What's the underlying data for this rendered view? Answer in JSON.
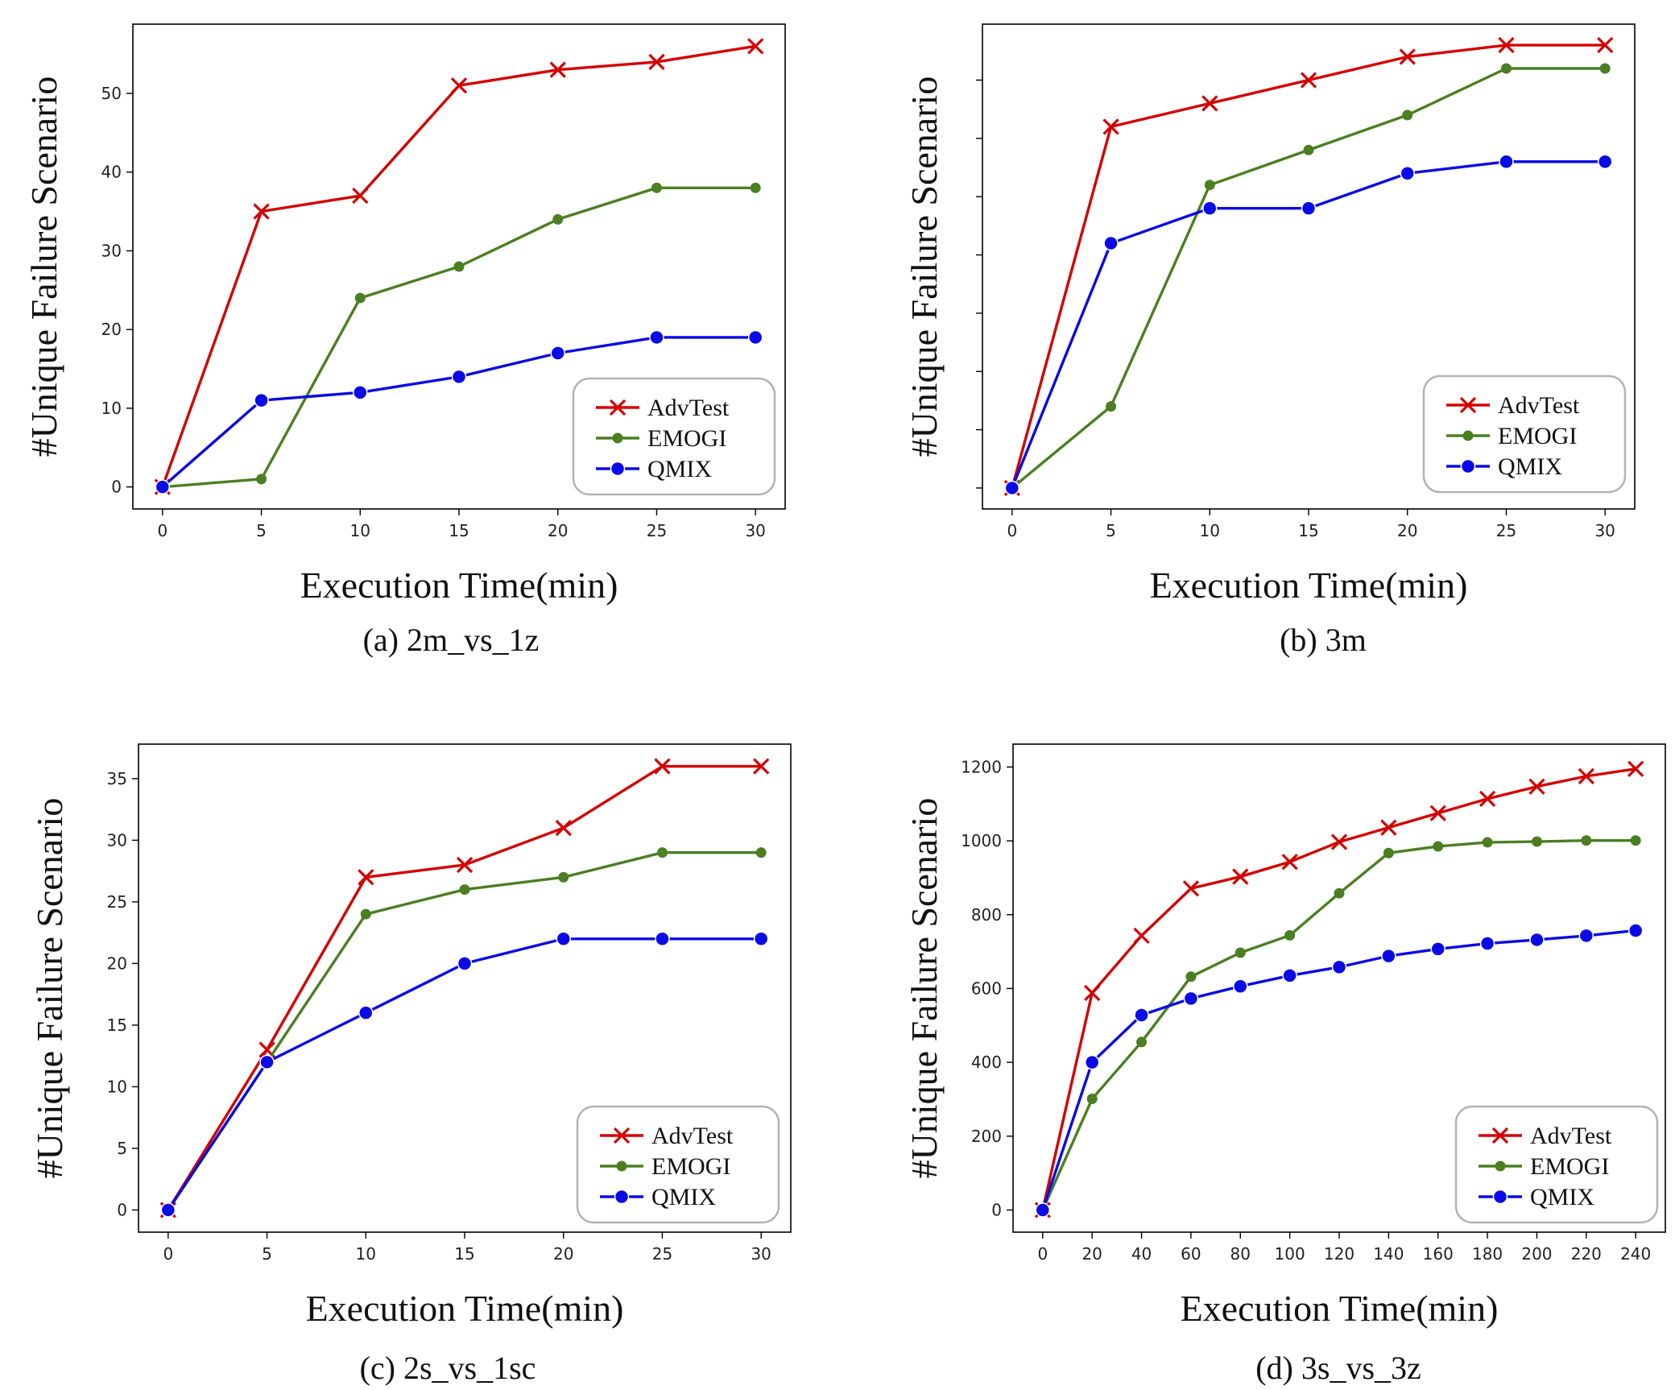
{
  "chart_data": [
    {
      "type": "line",
      "caption": "(a) 2m_vs_1z",
      "xlabel": "Execution Time(min)",
      "ylabel": "#Unique Failure Scenario",
      "x": [
        0,
        5,
        10,
        15,
        20,
        25,
        30
      ],
      "xticks": [
        0,
        5,
        10,
        15,
        20,
        25,
        30
      ],
      "yticks": [
        0,
        10,
        20,
        30,
        40,
        50
      ],
      "xlim": [
        -1.5,
        31.5
      ],
      "ylim": [
        -2.8,
        58.8
      ],
      "show_ytick_labels": true,
      "grid": false,
      "legend_position": "lower-right",
      "series": [
        {
          "name": "AdvTest",
          "color": "#d40000",
          "marker": "x",
          "values": [
            0,
            35,
            37,
            51,
            53,
            54,
            56
          ]
        },
        {
          "name": "EMOGI",
          "color": "#4b7f22",
          "marker": "dot",
          "values": [
            0,
            1,
            24,
            28,
            34,
            38,
            38
          ]
        },
        {
          "name": "QMIX",
          "color": "#0a0ae6",
          "marker": "circle",
          "values": [
            0,
            11,
            12,
            14,
            17,
            19,
            19
          ]
        }
      ]
    },
    {
      "type": "line",
      "caption": "(b) 3m",
      "xlabel": "Execution Time(min)",
      "ylabel": "#Unique Failure Scenario",
      "x": [
        0,
        5,
        10,
        15,
        20,
        25,
        30
      ],
      "xticks": [
        0,
        5,
        10,
        15,
        20,
        25,
        30
      ],
      "yticks": [
        0,
        5,
        10,
        15,
        20,
        25,
        30,
        35
      ],
      "xlim": [
        -1.5,
        31.5
      ],
      "ylim": [
        -1.8,
        39.8
      ],
      "show_ytick_labels": false,
      "grid": false,
      "legend_position": "lower-right",
      "series": [
        {
          "name": "AdvTest",
          "color": "#d40000",
          "marker": "x",
          "values": [
            0,
            31,
            33,
            35,
            37,
            38,
            38
          ]
        },
        {
          "name": "EMOGI",
          "color": "#4b7f22",
          "marker": "dot",
          "values": [
            0,
            7,
            26,
            29,
            32,
            36,
            36
          ]
        },
        {
          "name": "QMIX",
          "color": "#0a0ae6",
          "marker": "circle",
          "values": [
            0,
            21,
            24,
            24,
            27,
            28,
            28
          ]
        }
      ]
    },
    {
      "type": "line",
      "caption": "(c) 2s_vs_1sc",
      "xlabel": "Execution Time(min)",
      "ylabel": "#Unique Failure Scenario",
      "x": [
        0,
        5,
        10,
        15,
        20,
        25,
        30
      ],
      "xticks": [
        0,
        5,
        10,
        15,
        20,
        25,
        30
      ],
      "yticks": [
        0,
        5,
        10,
        15,
        20,
        25,
        30,
        35
      ],
      "xlim": [
        -1.5,
        31.5
      ],
      "ylim": [
        -1.8,
        37.8
      ],
      "show_ytick_labels": true,
      "grid": false,
      "legend_position": "lower-right",
      "series": [
        {
          "name": "AdvTest",
          "color": "#d40000",
          "marker": "x",
          "values": [
            0,
            13,
            27,
            28,
            31,
            36,
            36
          ]
        },
        {
          "name": "EMOGI",
          "color": "#4b7f22",
          "marker": "dot",
          "values": [
            0,
            12,
            24,
            26,
            27,
            29,
            29
          ]
        },
        {
          "name": "QMIX",
          "color": "#0a0ae6",
          "marker": "circle",
          "values": [
            0,
            12,
            16,
            20,
            22,
            22,
            22
          ]
        }
      ]
    },
    {
      "type": "line",
      "caption": "(d) 3s_vs_3z",
      "xlabel": "Execution Time(min)",
      "ylabel": "#Unique Failure Scenario",
      "x": [
        0,
        20,
        40,
        60,
        80,
        100,
        120,
        140,
        160,
        180,
        200,
        220,
        240
      ],
      "xticks": [
        0,
        20,
        40,
        60,
        80,
        100,
        120,
        140,
        160,
        180,
        200,
        220,
        240
      ],
      "yticks": [
        0,
        200,
        400,
        600,
        800,
        1000,
        1200
      ],
      "xlim": [
        -12,
        252
      ],
      "ylim": [
        -60,
        1262
      ],
      "show_ytick_labels": true,
      "grid": false,
      "legend_position": "lower-right",
      "series": [
        {
          "name": "AdvTest",
          "color": "#d40000",
          "marker": "x",
          "values": [
            0,
            588,
            743,
            871,
            903,
            943,
            997,
            1036,
            1075,
            1114,
            1147,
            1175,
            1195
          ]
        },
        {
          "name": "EMOGI",
          "color": "#4b7f22",
          "marker": "dot",
          "values": [
            0,
            301,
            455,
            632,
            697,
            744,
            858,
            967,
            985,
            996,
            998,
            1001,
            1001
          ]
        },
        {
          "name": "QMIX",
          "color": "#0a0ae6",
          "marker": "circle",
          "values": [
            0,
            400,
            528,
            573,
            606,
            635,
            658,
            688,
            707,
            722,
            732,
            743,
            757
          ]
        }
      ]
    }
  ]
}
